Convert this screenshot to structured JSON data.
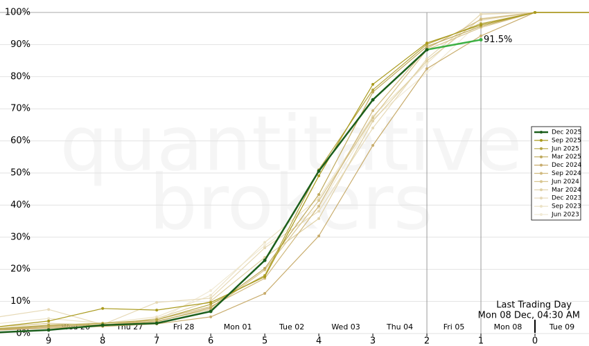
{
  "chart_data": {
    "type": "line",
    "watermark": [
      "quantitative",
      "brokers"
    ],
    "x": [
      10,
      9,
      8,
      7,
      6,
      5,
      4,
      3,
      2,
      1,
      0
    ],
    "xlim": [
      9.9,
      -1
    ],
    "xticks": [
      9,
      8,
      7,
      6,
      5,
      4,
      3,
      2,
      1,
      0
    ],
    "ylim": [
      0,
      100
    ],
    "yticks": [
      {
        "value": 0,
        "label": "0%"
      },
      {
        "value": 10,
        "label": "10%"
      },
      {
        "value": 20,
        "label": "20%"
      },
      {
        "value": 30,
        "label": "30%"
      },
      {
        "value": 40,
        "label": "40%"
      },
      {
        "value": 50,
        "label": "50%"
      },
      {
        "value": 60,
        "label": "60%"
      },
      {
        "value": 70,
        "label": "70%"
      },
      {
        "value": 80,
        "label": "80%"
      },
      {
        "value": 90,
        "label": "90%"
      },
      {
        "value": 100,
        "label": "100%"
      }
    ],
    "grid": true,
    "legend": "right",
    "date_labels": [
      {
        "x": 8.5,
        "label": "Wed 26"
      },
      {
        "x": 7.5,
        "label": "Thu 27"
      },
      {
        "x": 6.5,
        "label": "Fri 28"
      },
      {
        "x": 5.5,
        "label": "Mon 01"
      },
      {
        "x": 4.5,
        "label": "Tue 02"
      },
      {
        "x": 3.5,
        "label": "Wed 03"
      },
      {
        "x": 2.5,
        "label": "Thu 04"
      },
      {
        "x": 1.5,
        "label": "Fri 05"
      },
      {
        "x": 0.5,
        "label": "Mon 08"
      },
      {
        "x": -0.5,
        "label": "Tue 09"
      }
    ],
    "vlines": [
      2,
      1
    ],
    "last_trading_day": {
      "x": 0,
      "label": [
        "Last Trading Day",
        "Mon 08 Dec, 04:30 AM"
      ]
    },
    "series": [
      {
        "name": "Dec 2025",
        "color": "#1b5e1b",
        "last_segment_color": "#3cb043",
        "values": [
          0.3,
          1.1,
          2.6,
          3.2,
          6.9,
          22.8,
          50.6,
          72.8,
          88.4,
          91.5,
          null
        ],
        "value_labels": [
          null,
          null,
          null,
          null,
          null,
          null,
          null,
          null,
          null,
          "91.5%",
          null
        ]
      },
      {
        "name": "Sep 2025",
        "color": "#a99a1c",
        "values": [
          2.0,
          3.9,
          7.8,
          7.3,
          9.7,
          17.7,
          49.1,
          77.6,
          90.5,
          96.1,
          100
        ]
      },
      {
        "name": "Jun 2025",
        "color": "#b5a540",
        "values": [
          1.5,
          2.6,
          3.2,
          4.3,
          9.1,
          18.1,
          51.0,
          75.9,
          90.1,
          96.5,
          100
        ]
      },
      {
        "name": "Mar 2025",
        "color": "#bfa95c",
        "values": [
          1.2,
          2.2,
          2.8,
          3.7,
          8.0,
          20.3,
          43.3,
          75.2,
          89.4,
          95.7,
          100
        ]
      },
      {
        "name": "Dec 2024",
        "color": "#c8ac6c",
        "values": [
          1.0,
          1.7,
          2.2,
          3.0,
          5.2,
          12.5,
          30.4,
          58.6,
          82.5,
          92.7,
          100
        ]
      },
      {
        "name": "Sep 2024",
        "color": "#d0b97e",
        "values": [
          1.4,
          2.4,
          2.6,
          4.3,
          8.4,
          17.2,
          39.7,
          69.4,
          88.8,
          97.8,
          100
        ]
      },
      {
        "name": "Jun 2024",
        "color": "#d8c690",
        "values": [
          1.1,
          1.9,
          2.4,
          3.9,
          7.5,
          19.8,
          41.4,
          67.2,
          88.4,
          95.3,
          100
        ]
      },
      {
        "name": "Mar 2024",
        "color": "#dfd0a4",
        "values": [
          2.0,
          3.2,
          2.6,
          4.7,
          10.1,
          23.7,
          35.8,
          66.2,
          84.9,
          98.1,
          100
        ]
      },
      {
        "name": "Dec 2023",
        "color": "#e6d9b6",
        "values": [
          5.0,
          7.5,
          2.8,
          9.7,
          11.0,
          26.7,
          38.1,
          64.0,
          85.6,
          99.4,
          100
        ]
      },
      {
        "name": "Sep 2023",
        "color": "#ece3c7",
        "values": [
          3.0,
          4.7,
          3.2,
          5.2,
          11.9,
          28.4,
          42.2,
          67.7,
          84.1,
          99.6,
          100
        ]
      },
      {
        "name": "Jun 2023",
        "color": "#f1ead6",
        "values": [
          2.0,
          3.0,
          2.6,
          3.9,
          13.4,
          27.4,
          39.2,
          66.8,
          81.3,
          97.4,
          100
        ]
      }
    ]
  }
}
